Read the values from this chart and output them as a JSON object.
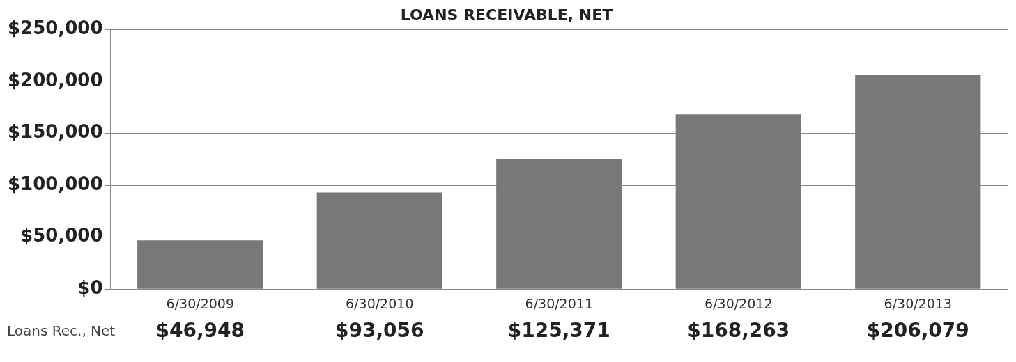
{
  "chart_data": {
    "type": "bar",
    "title": "LOANS RECEIVABLE, NET",
    "categories": [
      "6/30/2009",
      "6/30/2010",
      "6/30/2011",
      "6/30/2012",
      "6/30/2013"
    ],
    "series": [
      {
        "name": "Loans Rec., Net",
        "color": "#787878",
        "values": [
          46948,
          93056,
          125371,
          168263,
          206079
        ],
        "value_labels": [
          "$46,948",
          "$93,056",
          "$125,371",
          "$168,263",
          "$206,079"
        ]
      }
    ],
    "ylim": [
      0,
      250000
    ],
    "yticks": [
      {
        "value": 0,
        "label": "$0"
      },
      {
        "value": 50000,
        "label": "$50,000"
      },
      {
        "value": 100000,
        "label": "$100,000"
      },
      {
        "value": 150000,
        "label": "$150,000"
      },
      {
        "value": 200000,
        "label": "$200,000"
      },
      {
        "value": 250000,
        "label": "$250,000"
      }
    ],
    "grid": "y",
    "legend": false
  }
}
